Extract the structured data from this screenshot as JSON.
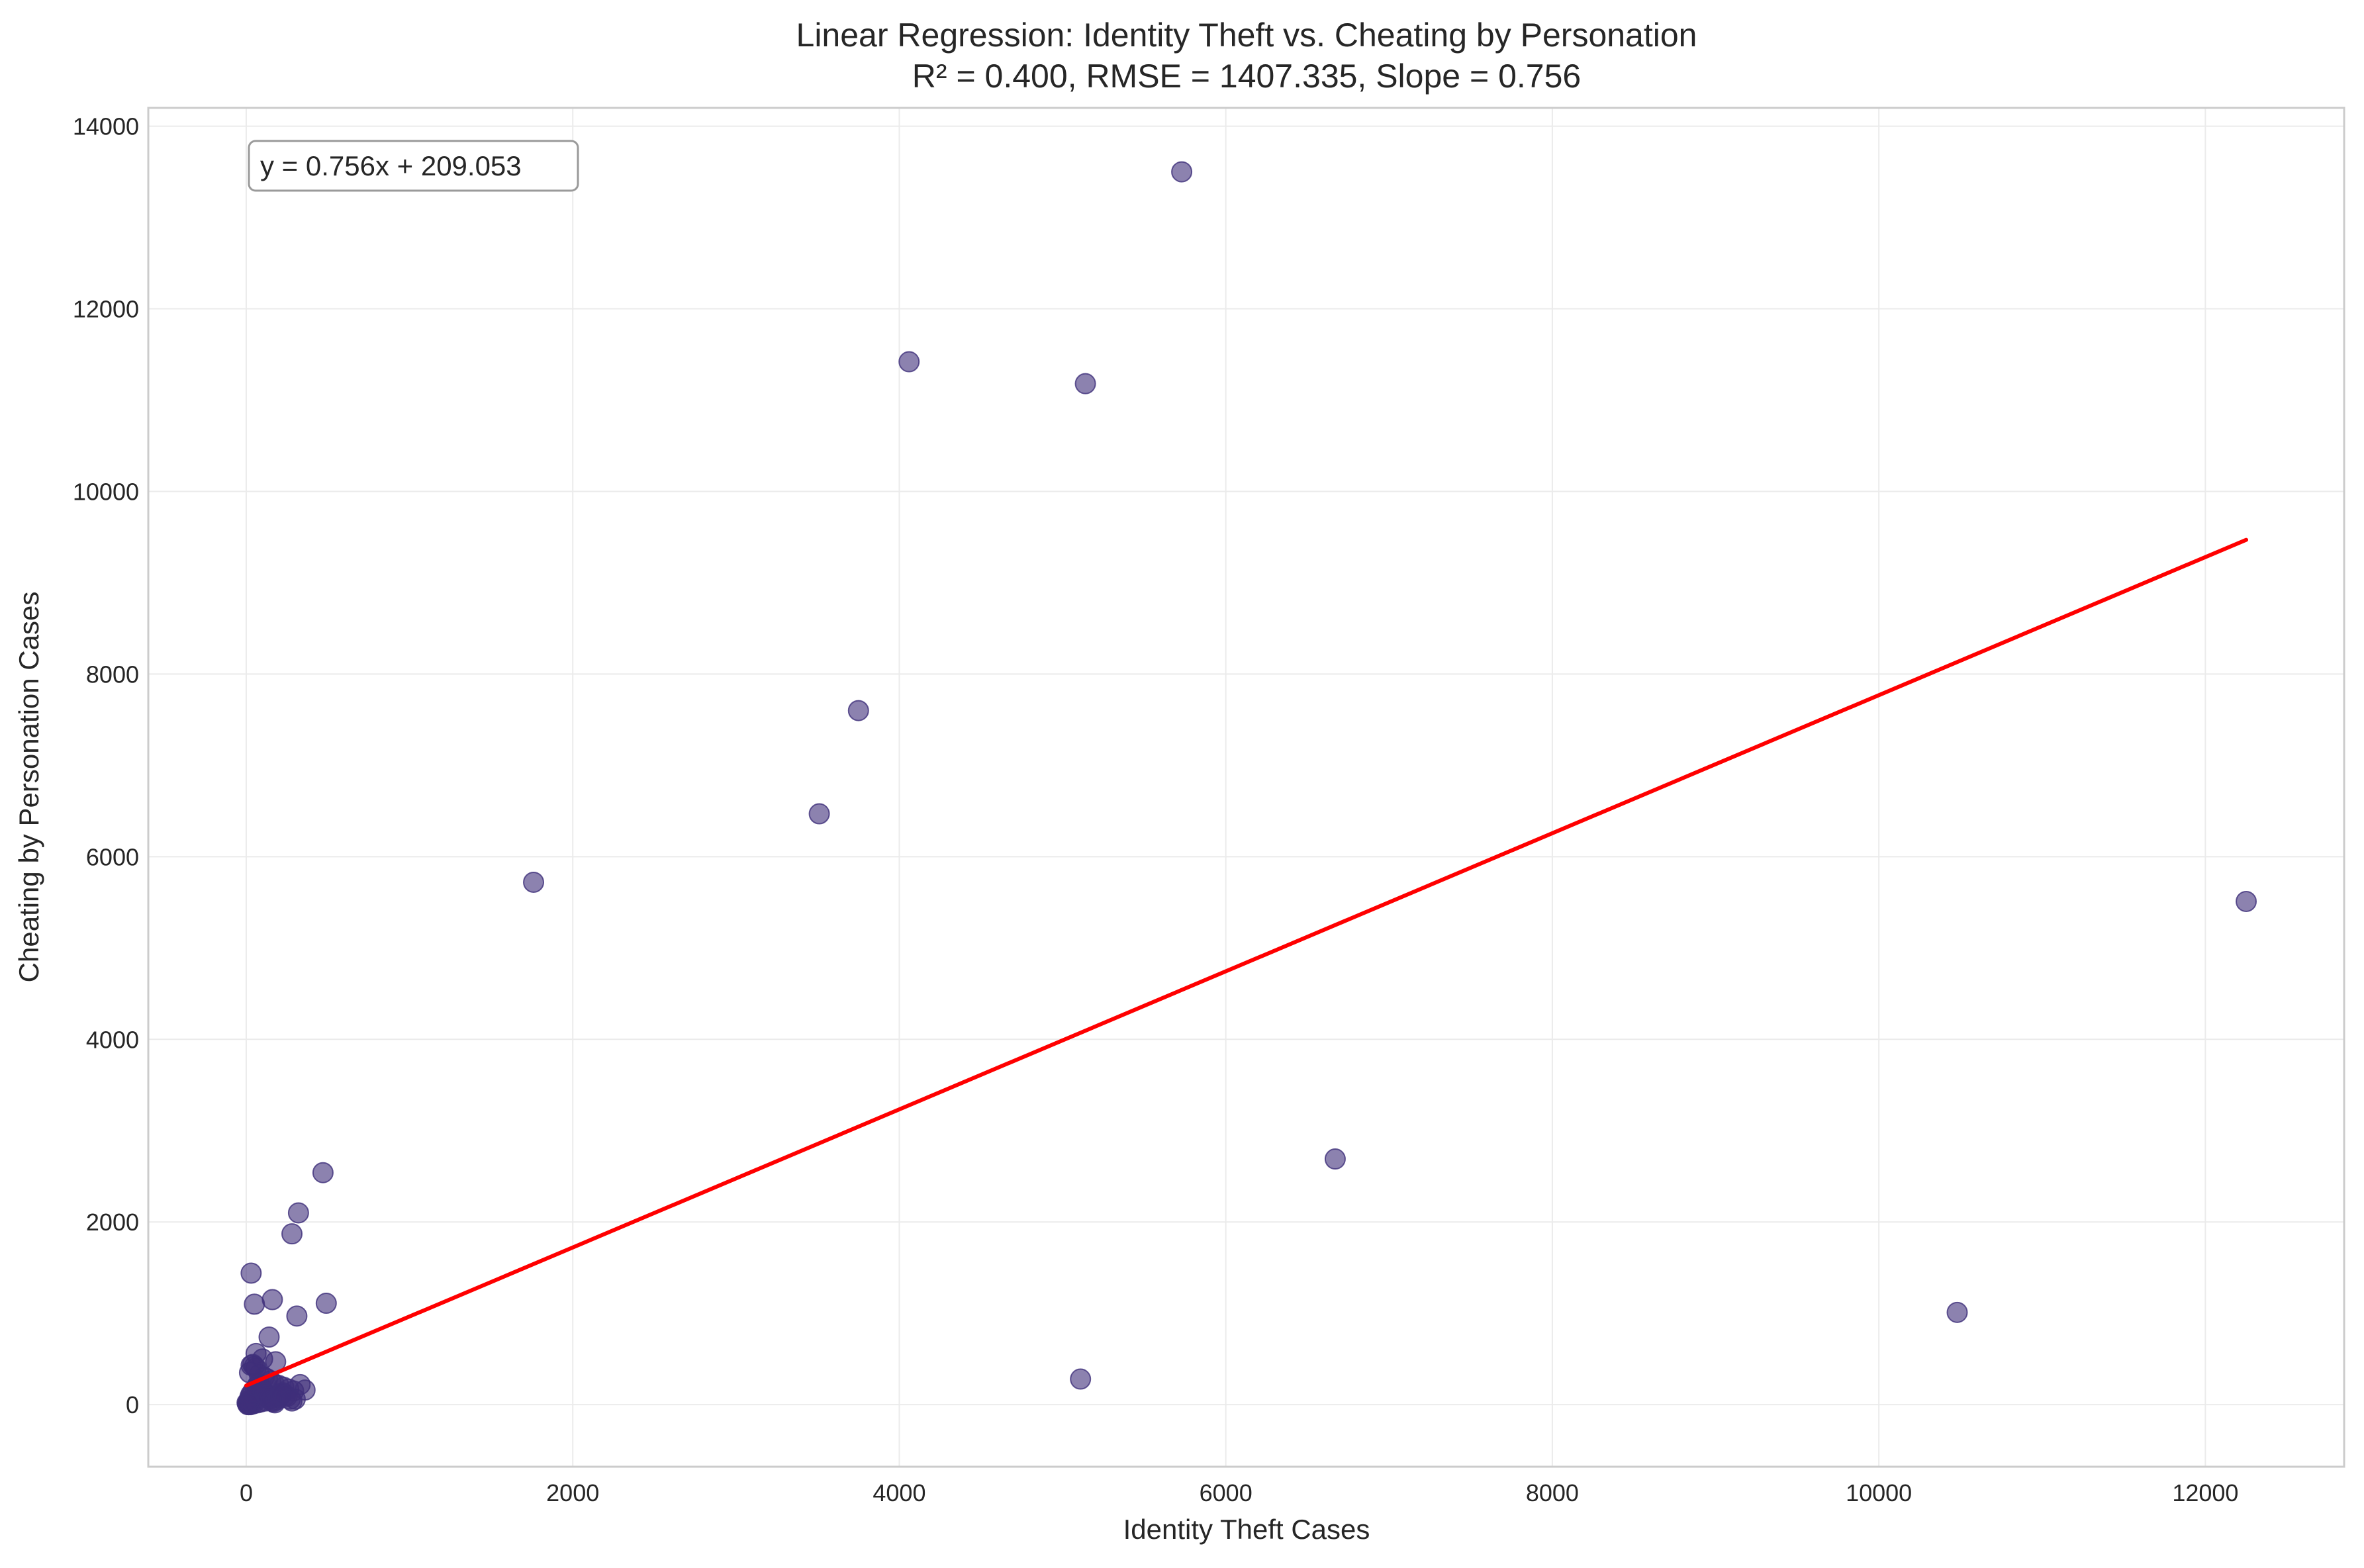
{
  "colors": {
    "points": "#3f2f7a",
    "regression_line": "#ff0000",
    "grid": "#ebebeb",
    "frame": "#cccccc"
  },
  "chart_data": {
    "type": "scatter",
    "title": "Linear Regression: Identity Theft vs. Cheating by Personation",
    "subtitle": "R² = 0.400, RMSE = 1407.335, Slope = 0.756",
    "xlabel": "Identity Theft Cases",
    "ylabel": "Cheating by Personation Cases",
    "xlim": [
      -600,
      12850
    ],
    "ylim": [
      -680,
      14200
    ],
    "xticks": [
      0,
      2000,
      4000,
      6000,
      8000,
      10000,
      12000
    ],
    "yticks": [
      0,
      2000,
      4000,
      6000,
      8000,
      10000,
      12000,
      14000
    ],
    "grid": true,
    "annotation": "y = 0.756x + 209.053",
    "regression": {
      "slope": 0.756,
      "intercept": 209.053,
      "x_range": [
        0,
        12250
      ]
    },
    "x": [
      5730,
      4060,
      5140,
      3750,
      3510,
      1760,
      12250,
      6670,
      10480,
      5110,
      470,
      320,
      280,
      30,
      50,
      160,
      490,
      310,
      140,
      60,
      100,
      180,
      40,
      60,
      20,
      80,
      110,
      130,
      150,
      170,
      200,
      230,
      260,
      290,
      330,
      360,
      210,
      250,
      300,
      120,
      90,
      70,
      45,
      35,
      25,
      15,
      10,
      8,
      5,
      12,
      18,
      22,
      28,
      40,
      55,
      65,
      75,
      85,
      95,
      105,
      115,
      125,
      135,
      145,
      155,
      165,
      175,
      185,
      195,
      205,
      215,
      225,
      240,
      270,
      280,
      30,
      50
    ],
    "y": [
      13500,
      11420,
      11180,
      7600,
      6470,
      5720,
      5510,
      2690,
      1010,
      280,
      2540,
      2100,
      1870,
      1440,
      1100,
      1150,
      1110,
      970,
      740,
      560,
      500,
      470,
      440,
      400,
      350,
      330,
      300,
      280,
      260,
      230,
      210,
      190,
      170,
      150,
      220,
      160,
      120,
      90,
      60,
      40,
      30,
      20,
      10,
      5,
      0,
      0,
      0,
      10,
      20,
      30,
      50,
      80,
      110,
      140,
      170,
      200,
      230,
      210,
      180,
      150,
      120,
      100,
      80,
      60,
      40,
      30,
      20,
      50,
      70,
      90,
      110,
      130,
      100,
      60,
      40,
      430,
      420
    ]
  }
}
